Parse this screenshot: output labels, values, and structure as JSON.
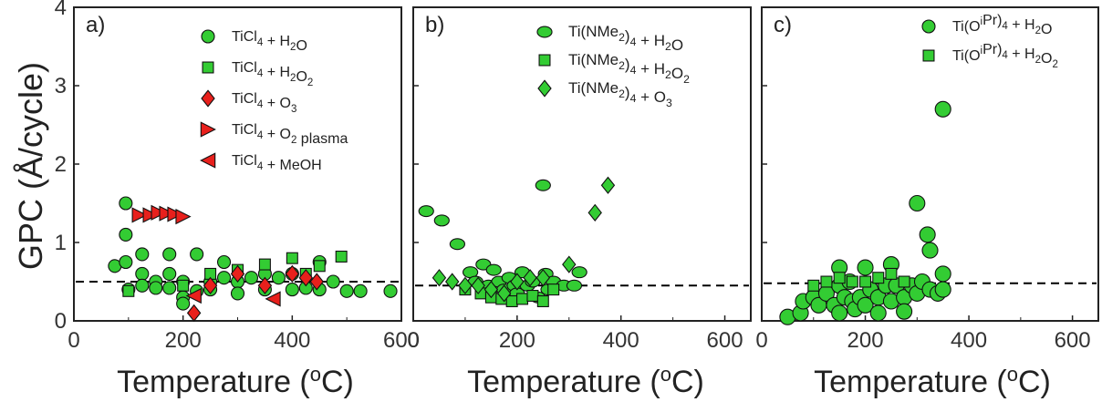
{
  "figure": {
    "ylabel": "GPC (Å/cycle)",
    "xlabel_text": "Temperature (",
    "xlabel_sup": "o",
    "xlabel_tail": "C)"
  },
  "colors": {
    "green": "#33cc33",
    "red": "#e8201c",
    "stroke": "#111111",
    "dash": "#000000"
  },
  "chart_data": [
    {
      "type": "scatter",
      "panel_label": "a)",
      "xlim": [
        0,
        600
      ],
      "ylim": [
        0,
        4
      ],
      "xticks": [
        "0",
        "200",
        "400",
        "600"
      ],
      "yticks": [
        "0",
        "1",
        "2",
        "3",
        "4"
      ],
      "reference_line_y": 0.5,
      "legend_position": "top-right",
      "series": [
        {
          "name": "TiCl4 + H2O",
          "legend": [
            [
              "TiCl",
              ""
            ],
            [
              "4",
              "sub"
            ],
            [
              " + H",
              ""
            ],
            [
              "2",
              "sub"
            ],
            [
              "O",
              ""
            ]
          ],
          "marker": "circle",
          "color": "#33cc33",
          "points": [
            [
              75,
              0.7
            ],
            [
              95,
              1.5
            ],
            [
              95,
              1.1
            ],
            [
              95,
              0.75
            ],
            [
              100,
              0.4
            ],
            [
              125,
              0.85
            ],
            [
              125,
              0.6
            ],
            [
              125,
              0.45
            ],
            [
              150,
              0.5
            ],
            [
              150,
              0.42
            ],
            [
              175,
              0.85
            ],
            [
              175,
              0.6
            ],
            [
              175,
              0.42
            ],
            [
              200,
              0.5
            ],
            [
              200,
              0.3
            ],
            [
              200,
              0.22
            ],
            [
              225,
              0.85
            ],
            [
              225,
              0.38
            ],
            [
              250,
              0.5
            ],
            [
              250,
              0.4
            ],
            [
              275,
              0.75
            ],
            [
              275,
              0.55
            ],
            [
              300,
              0.5
            ],
            [
              300,
              0.35
            ],
            [
              325,
              0.55
            ],
            [
              350,
              0.6
            ],
            [
              350,
              0.4
            ],
            [
              375,
              0.55
            ],
            [
              400,
              0.6
            ],
            [
              400,
              0.4
            ],
            [
              425,
              0.42
            ],
            [
              450,
              0.75
            ],
            [
              450,
              0.4
            ],
            [
              475,
              0.5
            ],
            [
              500,
              0.38
            ],
            [
              525,
              0.38
            ],
            [
              580,
              0.38
            ]
          ]
        },
        {
          "name": "TiCl4 + H2O2",
          "legend": [
            [
              "TiCl",
              ""
            ],
            [
              "4",
              "sub"
            ],
            [
              " + H",
              ""
            ],
            [
              "2",
              "sub"
            ],
            [
              "O",
              ""
            ],
            [
              "2",
              "sub"
            ]
          ],
          "marker": "square",
          "color": "#33cc33",
          "points": [
            [
              100,
              0.38
            ],
            [
              200,
              0.45
            ],
            [
              250,
              0.6
            ],
            [
              300,
              0.65
            ],
            [
              350,
              0.72
            ],
            [
              400,
              0.8
            ],
            [
              425,
              0.6
            ],
            [
              450,
              0.7
            ],
            [
              490,
              0.82
            ]
          ]
        },
        {
          "name": "TiCl4 + O3",
          "legend": [
            [
              "TiCl",
              ""
            ],
            [
              "4",
              "sub"
            ],
            [
              " + O",
              ""
            ],
            [
              "3",
              "sub"
            ]
          ],
          "marker": "diamond",
          "color": "#e8201c",
          "points": [
            [
              220,
              0.1
            ],
            [
              250,
              0.45
            ],
            [
              300,
              0.6
            ],
            [
              350,
              0.45
            ],
            [
              400,
              0.6
            ],
            [
              425,
              0.55
            ],
            [
              445,
              0.5
            ]
          ]
        },
        {
          "name": "TiCl4 + O2 plasma",
          "legend": [
            [
              "TiCl",
              ""
            ],
            [
              "4",
              "sub"
            ],
            [
              " + O",
              ""
            ],
            [
              "2",
              "sub"
            ],
            [
              " plasma",
              ""
            ]
          ],
          "marker": "tri-right",
          "color": "#e8201c",
          "points": [
            [
              120,
              1.35
            ],
            [
              140,
              1.35
            ],
            [
              155,
              1.38
            ],
            [
              170,
              1.37
            ],
            [
              185,
              1.36
            ],
            [
              200,
              1.33
            ]
          ]
        },
        {
          "name": "TiCl4 + MeOH",
          "legend": [
            [
              "TiCl",
              ""
            ],
            [
              "4",
              "sub"
            ],
            [
              " + MeOH",
              ""
            ]
          ],
          "marker": "tri-left",
          "color": "#e8201c",
          "points": [
            [
              220,
              0.32
            ],
            [
              365,
              0.28
            ]
          ]
        }
      ]
    },
    {
      "type": "scatter",
      "panel_label": "b)",
      "xlim": [
        0,
        650
      ],
      "ylim": [
        0,
        4
      ],
      "xticks": [
        "0",
        "200",
        "400",
        "600"
      ],
      "yticks": [],
      "reference_line_y": 0.45,
      "legend_position": "top-right",
      "series": [
        {
          "name": "Ti(NMe2)4 + H2O",
          "legend": [
            [
              "Ti(NMe",
              ""
            ],
            [
              "2",
              "sub"
            ],
            [
              ")",
              ""
            ],
            [
              "4",
              "sub"
            ],
            [
              " + H",
              ""
            ],
            [
              "2",
              "sub"
            ],
            [
              "O",
              ""
            ]
          ],
          "marker": "ellipse",
          "color": "#33cc33",
          "points": [
            [
              25,
              1.4
            ],
            [
              55,
              1.28
            ],
            [
              85,
              0.98
            ],
            [
              110,
              0.62
            ],
            [
              120,
              0.5
            ],
            [
              135,
              0.72
            ],
            [
              145,
              0.45
            ],
            [
              155,
              0.65
            ],
            [
              165,
              0.5
            ],
            [
              175,
              0.4
            ],
            [
              185,
              0.55
            ],
            [
              195,
              0.45
            ],
            [
              200,
              0.35
            ],
            [
              210,
              0.62
            ],
            [
              220,
              0.45
            ],
            [
              230,
              0.5
            ],
            [
              240,
              0.3
            ],
            [
              250,
              1.73
            ],
            [
              255,
              0.6
            ],
            [
              260,
              0.4
            ],
            [
              270,
              0.5
            ],
            [
              290,
              0.45
            ],
            [
              310,
              0.45
            ],
            [
              320,
              0.62
            ]
          ]
        },
        {
          "name": "Ti(NMe2)4 + H2O2",
          "legend": [
            [
              "Ti(NMe",
              ""
            ],
            [
              "2",
              "sub"
            ],
            [
              ")",
              ""
            ],
            [
              "4",
              "sub"
            ],
            [
              " + H",
              ""
            ],
            [
              "2",
              "sub"
            ],
            [
              "O",
              ""
            ],
            [
              "2",
              "sub"
            ]
          ],
          "marker": "square",
          "color": "#33cc33",
          "points": [
            [
              100,
              0.4
            ],
            [
              130,
              0.35
            ],
            [
              150,
              0.3
            ],
            [
              170,
              0.28
            ],
            [
              190,
              0.25
            ],
            [
              210,
              0.28
            ],
            [
              230,
              0.32
            ],
            [
              250,
              0.25
            ],
            [
              270,
              0.4
            ]
          ]
        },
        {
          "name": "Ti(NMe2)4 + O3",
          "legend": [
            [
              "Ti(NMe",
              ""
            ],
            [
              "2",
              "sub"
            ],
            [
              ")",
              ""
            ],
            [
              "4",
              "sub"
            ],
            [
              " + O",
              ""
            ],
            [
              "3",
              "sub"
            ]
          ],
          "marker": "diamond",
          "color": "#33cc33",
          "points": [
            [
              50,
              0.55
            ],
            [
              75,
              0.5
            ],
            [
              100,
              0.45
            ],
            [
              125,
              0.45
            ],
            [
              150,
              0.4
            ],
            [
              175,
              0.35
            ],
            [
              200,
              0.5
            ],
            [
              225,
              0.55
            ],
            [
              250,
              0.55
            ],
            [
              300,
              0.72
            ],
            [
              350,
              1.38
            ],
            [
              375,
              1.73
            ]
          ]
        }
      ]
    },
    {
      "type": "scatter",
      "panel_label": "c)",
      "xlim": [
        0,
        650
      ],
      "ylim": [
        0,
        4
      ],
      "xticks": [
        "0",
        "200",
        "400",
        "600"
      ],
      "yticks": [],
      "reference_line_y": 0.48,
      "legend_position": "top-right",
      "series": [
        {
          "name": "Ti(OiPr)4 + H2O",
          "legend": [
            [
              "Ti(O",
              ""
            ],
            [
              "i",
              "sup"
            ],
            [
              "Pr)",
              ""
            ],
            [
              "4",
              "sub"
            ],
            [
              " + H",
              ""
            ],
            [
              "2",
              "sub"
            ],
            [
              "O",
              ""
            ]
          ],
          "marker": "circle",
          "color": "#33cc33",
          "points": [
            [
              50,
              0.05
            ],
            [
              75,
              0.1
            ],
            [
              80,
              0.25
            ],
            [
              100,
              0.3
            ],
            [
              110,
              0.2
            ],
            [
              125,
              0.35
            ],
            [
              140,
              0.2
            ],
            [
              150,
              0.68
            ],
            [
              150,
              0.45
            ],
            [
              150,
              0.1
            ],
            [
              160,
              0.3
            ],
            [
              170,
              0.5
            ],
            [
              175,
              0.25
            ],
            [
              180,
              0.15
            ],
            [
              190,
              0.3
            ],
            [
              200,
              0.68
            ],
            [
              200,
              0.2
            ],
            [
              210,
              0.4
            ],
            [
              225,
              0.3
            ],
            [
              225,
              0.1
            ],
            [
              240,
              0.45
            ],
            [
              250,
              0.72
            ],
            [
              250,
              0.25
            ],
            [
              260,
              0.45
            ],
            [
              275,
              0.3
            ],
            [
              275,
              0.12
            ],
            [
              290,
              0.45
            ],
            [
              300,
              1.5
            ],
            [
              300,
              0.35
            ],
            [
              310,
              0.5
            ],
            [
              320,
              1.1
            ],
            [
              325,
              0.9
            ],
            [
              325,
              0.4
            ],
            [
              340,
              0.35
            ],
            [
              350,
              2.7
            ],
            [
              350,
              0.6
            ],
            [
              350,
              0.4
            ]
          ]
        },
        {
          "name": "Ti(OiPr)4 + H2O2",
          "legend": [
            [
              "Ti(O",
              ""
            ],
            [
              "i",
              "sup"
            ],
            [
              "Pr)",
              ""
            ],
            [
              "4",
              "sub"
            ],
            [
              " + H",
              ""
            ],
            [
              "2",
              "sub"
            ],
            [
              "O",
              ""
            ],
            [
              "2",
              "sub"
            ]
          ],
          "marker": "square",
          "color": "#33cc33",
          "points": [
            [
              100,
              0.45
            ],
            [
              125,
              0.5
            ],
            [
              150,
              0.55
            ],
            [
              175,
              0.5
            ],
            [
              200,
              0.5
            ],
            [
              225,
              0.55
            ],
            [
              250,
              0.6
            ],
            [
              275,
              0.5
            ]
          ]
        }
      ]
    }
  ]
}
